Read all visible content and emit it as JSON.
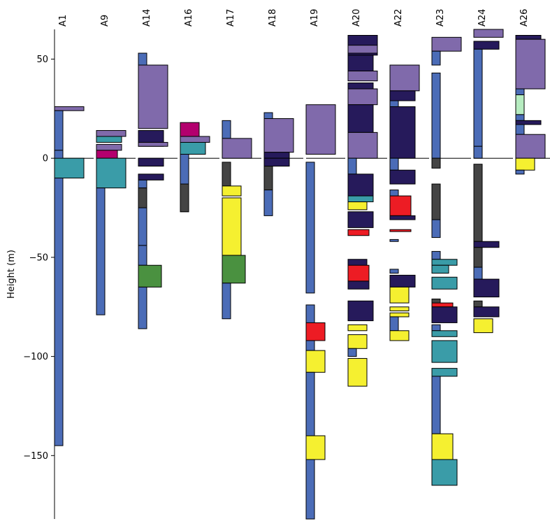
{
  "chart_data": {
    "type": "bar",
    "ylabel": "Height (m)",
    "ylim": [
      -182,
      65
    ],
    "yticks": [
      50,
      0,
      -50,
      -100,
      -150
    ],
    "ytick_labels": [
      "50",
      "0",
      "−50",
      "−100",
      "−150"
    ],
    "reference_line_y": 0,
    "colors": {
      "blue": "#4b6cb7",
      "lavender": "#806aab",
      "navy": "#261a5b",
      "teal": "#3a9ca8",
      "magenta": "#b3006e",
      "dark": "#444444",
      "green": "#4a9140",
      "yellow": "#f5f030",
      "red": "#ed1c24",
      "lightgreen": "#b6ecc0"
    },
    "columns": [
      {
        "name": "A1",
        "layers": [
          {
            "top": 26,
            "bottom": 24,
            "color": "lavender",
            "wide": 1
          },
          {
            "top": 24,
            "bottom": 4,
            "color": "blue",
            "wide": 0
          },
          {
            "top": 4,
            "bottom": -145,
            "color": "blue",
            "wide": 0
          },
          {
            "top": 0,
            "bottom": -10,
            "color": "teal",
            "wide": 1
          }
        ]
      },
      {
        "name": "A9",
        "layers": [
          {
            "top": 14,
            "bottom": 11,
            "color": "lavender",
            "wide": 1
          },
          {
            "top": 11,
            "bottom": 8,
            "color": "teal",
            "wide": 0.8
          },
          {
            "top": 7,
            "bottom": 4,
            "color": "lavender",
            "wide": 0.8
          },
          {
            "top": 4,
            "bottom": 0,
            "color": "magenta",
            "wide": 0.6
          },
          {
            "top": 0,
            "bottom": -15,
            "color": "teal",
            "wide": 1
          },
          {
            "top": -15,
            "bottom": -79,
            "color": "blue",
            "wide": 0
          }
        ]
      },
      {
        "name": "A14",
        "layers": [
          {
            "top": 53,
            "bottom": 47,
            "color": "blue",
            "wide": 0
          },
          {
            "top": 47,
            "bottom": 15,
            "color": "lavender",
            "wide": 1
          },
          {
            "top": 14,
            "bottom": 6,
            "color": "navy",
            "wide": 0.8
          },
          {
            "top": 8,
            "bottom": 6,
            "color": "lavender",
            "wide": 1
          },
          {
            "top": 0,
            "bottom": -4,
            "color": "navy",
            "wide": 0.8
          },
          {
            "top": -8,
            "bottom": -11,
            "color": "navy",
            "wide": 0.8
          },
          {
            "top": -11,
            "bottom": -15,
            "color": "blue",
            "wide": 0
          },
          {
            "top": -15,
            "bottom": -25,
            "color": "dark",
            "wide": 0
          },
          {
            "top": -25,
            "bottom": -44,
            "color": "blue",
            "wide": 0
          },
          {
            "top": -44,
            "bottom": -54,
            "color": "blue",
            "wide": 0
          },
          {
            "top": -54,
            "bottom": -65,
            "color": "green",
            "wide": 0.7
          },
          {
            "top": -65,
            "bottom": -86,
            "color": "blue",
            "wide": 0
          }
        ]
      },
      {
        "name": "A16",
        "layers": [
          {
            "top": 18,
            "bottom": 11,
            "color": "magenta",
            "wide": 0.5
          },
          {
            "top": 11,
            "bottom": 8,
            "color": "lavender",
            "wide": 1
          },
          {
            "top": 8,
            "bottom": 2,
            "color": "teal",
            "wide": 0.8
          },
          {
            "top": 2,
            "bottom": -27,
            "color": "blue",
            "wide": 0
          },
          {
            "top": -13,
            "bottom": -27,
            "color": "dark",
            "wide": 0
          }
        ]
      },
      {
        "name": "A17",
        "layers": [
          {
            "top": 19,
            "bottom": 10,
            "color": "blue",
            "wide": 0
          },
          {
            "top": 10,
            "bottom": 0,
            "color": "lavender",
            "wide": 1
          },
          {
            "top": -2,
            "bottom": -14,
            "color": "dark",
            "wide": 0
          },
          {
            "top": -14,
            "bottom": -19,
            "color": "yellow",
            "wide": 0.5
          },
          {
            "top": -20,
            "bottom": -49,
            "color": "yellow",
            "wide": 0.5
          },
          {
            "top": -49,
            "bottom": -63,
            "color": "green",
            "wide": 0.7
          },
          {
            "top": -63,
            "bottom": -81,
            "color": "blue",
            "wide": 0
          }
        ]
      },
      {
        "name": "A18",
        "layers": [
          {
            "top": 23,
            "bottom": 20,
            "color": "blue",
            "wide": 0
          },
          {
            "top": 20,
            "bottom": 3,
            "color": "lavender",
            "wide": 1
          },
          {
            "top": 3,
            "bottom": 0,
            "color": "navy",
            "wide": 0.8
          },
          {
            "top": 0,
            "bottom": -4,
            "color": "navy",
            "wide": 0.8
          },
          {
            "top": -4,
            "bottom": -16,
            "color": "dark",
            "wide": 0
          },
          {
            "top": -16,
            "bottom": -29,
            "color": "blue",
            "wide": 0
          }
        ]
      },
      {
        "name": "A19",
        "layers": [
          {
            "top": 27,
            "bottom": 2,
            "color": "lavender",
            "wide": 1
          },
          {
            "top": -2,
            "bottom": -68,
            "color": "blue",
            "wide": 0
          },
          {
            "top": -74,
            "bottom": -83,
            "color": "blue",
            "wide": 0
          },
          {
            "top": -83,
            "bottom": -92,
            "color": "red",
            "wide": 0.5
          },
          {
            "top": -92,
            "bottom": -97,
            "color": "blue",
            "wide": 0
          },
          {
            "top": -97,
            "bottom": -108,
            "color": "yellow",
            "wide": 0.5
          },
          {
            "top": -108,
            "bottom": -140,
            "color": "blue",
            "wide": 0
          },
          {
            "top": -140,
            "bottom": -152,
            "color": "yellow",
            "wide": 0.5
          },
          {
            "top": -152,
            "bottom": -182,
            "color": "blue",
            "wide": 0
          }
        ]
      },
      {
        "name": "A20",
        "layers": [
          {
            "top": 62,
            "bottom": 52,
            "color": "navy",
            "wide": 1
          },
          {
            "top": 57,
            "bottom": 53,
            "color": "lavender",
            "wide": 1
          },
          {
            "top": 52,
            "bottom": 44,
            "color": "navy",
            "wide": 0.8
          },
          {
            "top": 44,
            "bottom": 39,
            "color": "lavender",
            "wide": 1
          },
          {
            "top": 38,
            "bottom": 35,
            "color": "navy",
            "wide": 0.8
          },
          {
            "top": 35,
            "bottom": 27,
            "color": "lavender",
            "wide": 1
          },
          {
            "top": 27,
            "bottom": 13,
            "color": "navy",
            "wide": 0.8
          },
          {
            "top": 13,
            "bottom": 0,
            "color": "lavender",
            "wide": 1
          },
          {
            "top": 0,
            "bottom": -8,
            "color": "blue",
            "wide": 0
          },
          {
            "top": -8,
            "bottom": -19,
            "color": "navy",
            "wide": 0.8
          },
          {
            "top": -19,
            "bottom": -22,
            "color": "teal",
            "wide": 0.8
          },
          {
            "top": -22,
            "bottom": -26,
            "color": "yellow",
            "wide": 0.5
          },
          {
            "top": -27,
            "bottom": -35,
            "color": "navy",
            "wide": 0.8
          },
          {
            "top": -36,
            "bottom": -39,
            "color": "red",
            "wide": 0.6
          },
          {
            "top": -51,
            "bottom": -56,
            "color": "navy",
            "wide": 0.5
          },
          {
            "top": -54,
            "bottom": -62,
            "color": "red",
            "wide": 0.6
          },
          {
            "top": -62,
            "bottom": -66,
            "color": "navy",
            "wide": 0.6
          },
          {
            "top": -72,
            "bottom": -82,
            "color": "navy",
            "wide": 0.8
          },
          {
            "top": -84,
            "bottom": -87,
            "color": "yellow",
            "wide": 0.5
          },
          {
            "top": -89,
            "bottom": -96,
            "color": "yellow",
            "wide": 0.5
          },
          {
            "top": -96,
            "bottom": -100,
            "color": "blue",
            "wide": 0
          },
          {
            "top": -101,
            "bottom": -115,
            "color": "yellow",
            "wide": 0.5
          }
        ]
      },
      {
        "name": "A22",
        "layers": [
          {
            "top": 47,
            "bottom": 34,
            "color": "lavender",
            "wide": 1
          },
          {
            "top": 34,
            "bottom": 29,
            "color": "navy",
            "wide": 0.8
          },
          {
            "top": 29,
            "bottom": 26,
            "color": "blue",
            "wide": 0
          },
          {
            "top": 26,
            "bottom": 0,
            "color": "navy",
            "wide": 0.8
          },
          {
            "top": 0,
            "bottom": -6,
            "color": "blue",
            "wide": 0
          },
          {
            "top": -6,
            "bottom": -13,
            "color": "navy",
            "wide": 0.8
          },
          {
            "top": -16,
            "bottom": -19,
            "color": "blue",
            "wide": 0
          },
          {
            "top": -19,
            "bottom": -29,
            "color": "red",
            "wide": 0.6
          },
          {
            "top": -29,
            "bottom": -31,
            "color": "navy",
            "wide": 0.8
          },
          {
            "top": -36,
            "bottom": -37,
            "color": "red",
            "wide": 0.6
          },
          {
            "top": -41,
            "bottom": -42,
            "color": "blue",
            "wide": 0
          },
          {
            "top": -56,
            "bottom": -58,
            "color": "blue",
            "wide": 0
          },
          {
            "top": -59,
            "bottom": -65,
            "color": "navy",
            "wide": 0.8
          },
          {
            "top": -65,
            "bottom": -73,
            "color": "yellow",
            "wide": 0.5
          },
          {
            "top": -75,
            "bottom": -77,
            "color": "yellow",
            "wide": 0.5
          },
          {
            "top": -78,
            "bottom": -80,
            "color": "yellow",
            "wide": 0.5
          },
          {
            "top": -80,
            "bottom": -87,
            "color": "blue",
            "wide": 0
          },
          {
            "top": -87,
            "bottom": -92,
            "color": "yellow",
            "wide": 0.5
          }
        ]
      },
      {
        "name": "A23",
        "layers": [
          {
            "top": 61,
            "bottom": 54,
            "color": "lavender",
            "wide": 1
          },
          {
            "top": 54,
            "bottom": 47,
            "color": "blue",
            "wide": 0
          },
          {
            "top": 43,
            "bottom": 0,
            "color": "blue",
            "wide": 0
          },
          {
            "top": 0,
            "bottom": -5,
            "color": "dark",
            "wide": 0
          },
          {
            "top": -13,
            "bottom": -31,
            "color": "dark",
            "wide": 0
          },
          {
            "top": -31,
            "bottom": -40,
            "color": "blue",
            "wide": 0
          },
          {
            "top": -47,
            "bottom": -51,
            "color": "blue",
            "wide": 0
          },
          {
            "top": -51,
            "bottom": -54,
            "color": "teal",
            "wide": 0.8
          },
          {
            "top": -54,
            "bottom": -58,
            "color": "teal",
            "wide": 0.4
          },
          {
            "top": -60,
            "bottom": -66,
            "color": "teal",
            "wide": 0.8
          },
          {
            "top": -71,
            "bottom": -75,
            "color": "dark",
            "wide": 0
          },
          {
            "top": -73,
            "bottom": -75,
            "color": "red",
            "wide": 0.6
          },
          {
            "top": -75,
            "bottom": -83,
            "color": "navy",
            "wide": 0.8
          },
          {
            "top": -84,
            "bottom": -87,
            "color": "blue",
            "wide": 0
          },
          {
            "top": -87,
            "bottom": -90,
            "color": "teal",
            "wide": 0.8
          },
          {
            "top": -92,
            "bottom": -103,
            "color": "teal",
            "wide": 0.8
          },
          {
            "top": -106,
            "bottom": -110,
            "color": "teal",
            "wide": 0.8
          },
          {
            "top": -110,
            "bottom": -139,
            "color": "blue",
            "wide": 0
          },
          {
            "top": -139,
            "bottom": -152,
            "color": "yellow",
            "wide": 0.6
          },
          {
            "top": -152,
            "bottom": -165,
            "color": "teal",
            "wide": 0.8
          }
        ]
      },
      {
        "name": "A24",
        "layers": [
          {
            "top": 65,
            "bottom": 61,
            "color": "lavender",
            "wide": 1
          },
          {
            "top": 59,
            "bottom": 55,
            "color": "navy",
            "wide": 0.8
          },
          {
            "top": 55,
            "bottom": 6,
            "color": "blue",
            "wide": 0
          },
          {
            "top": 6,
            "bottom": 0,
            "color": "blue",
            "wide": 0
          },
          {
            "top": -3,
            "bottom": -42,
            "color": "dark",
            "wide": 0
          },
          {
            "top": -42,
            "bottom": -45,
            "color": "navy",
            "wide": 0.8
          },
          {
            "top": -45,
            "bottom": -55,
            "color": "dark",
            "wide": 0
          },
          {
            "top": -55,
            "bottom": -61,
            "color": "blue",
            "wide": 0
          },
          {
            "top": -61,
            "bottom": -70,
            "color": "navy",
            "wide": 0.8
          },
          {
            "top": -72,
            "bottom": -75,
            "color": "dark",
            "wide": 0
          },
          {
            "top": -75,
            "bottom": -80,
            "color": "navy",
            "wide": 0.8
          },
          {
            "top": -81,
            "bottom": -88,
            "color": "yellow",
            "wide": 0.5
          }
        ]
      },
      {
        "name": "A26",
        "layers": [
          {
            "top": 62,
            "bottom": 60,
            "color": "navy",
            "wide": 0.8
          },
          {
            "top": 60,
            "bottom": 35,
            "color": "lavender",
            "wide": 1
          },
          {
            "top": 35,
            "bottom": 32,
            "color": "blue",
            "wide": 0
          },
          {
            "top": 32,
            "bottom": 22,
            "color": "lightgreen",
            "wide": 0
          },
          {
            "top": 22,
            "bottom": 19,
            "color": "blue",
            "wide": 0
          },
          {
            "top": 19,
            "bottom": 17,
            "color": "navy",
            "wide": 0.8
          },
          {
            "top": 17,
            "bottom": 12,
            "color": "blue",
            "wide": 0
          },
          {
            "top": 12,
            "bottom": 0,
            "color": "lavender",
            "wide": 1
          },
          {
            "top": 0,
            "bottom": -6,
            "color": "yellow",
            "wide": 0.5
          },
          {
            "top": -6,
            "bottom": -8,
            "color": "blue",
            "wide": 0
          }
        ]
      }
    ]
  }
}
